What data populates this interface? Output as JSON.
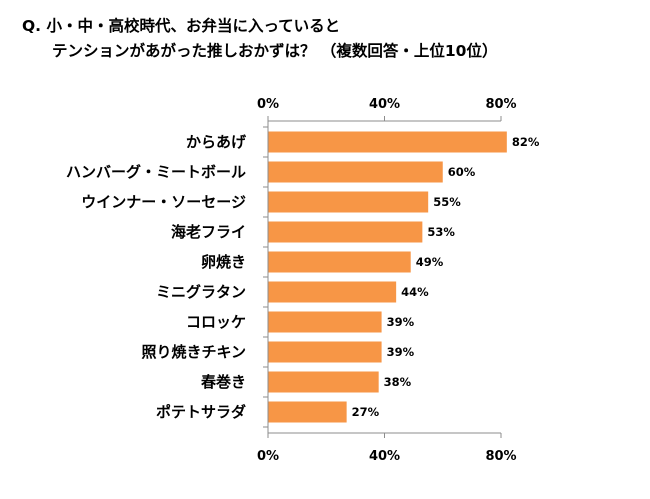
{
  "title_line1": "Q.  小・中・高校時代、お弁当に入っていると",
  "title_line2": "テンションがあがった推しおかずは？  （複数回答・上位10位）",
  "chart_data": {
    "type": "bar",
    "orientation": "horizontal",
    "categories": [
      "からあげ",
      "ハンバーグ・ミートボール",
      "ウインナー・ソーセージ",
      "海老フライ",
      "卵焼き",
      "ミニグラタン",
      "コロッケ",
      "照り焼きチキン",
      "春巻き",
      "ポテトサラダ"
    ],
    "values": [
      82,
      60,
      55,
      53,
      49,
      44,
      39,
      39,
      38,
      27
    ],
    "value_labels": [
      "82%",
      "60%",
      "55%",
      "53%",
      "49%",
      "44%",
      "39%",
      "39%",
      "38%",
      "27%"
    ],
    "xlim": [
      0,
      80
    ],
    "ticks": [
      0,
      40,
      80
    ],
    "tick_labels": [
      "0%",
      "40%",
      "80%"
    ],
    "tick_labels_top_and_bottom": true,
    "bar_color": "#F79646",
    "grid": false
  }
}
